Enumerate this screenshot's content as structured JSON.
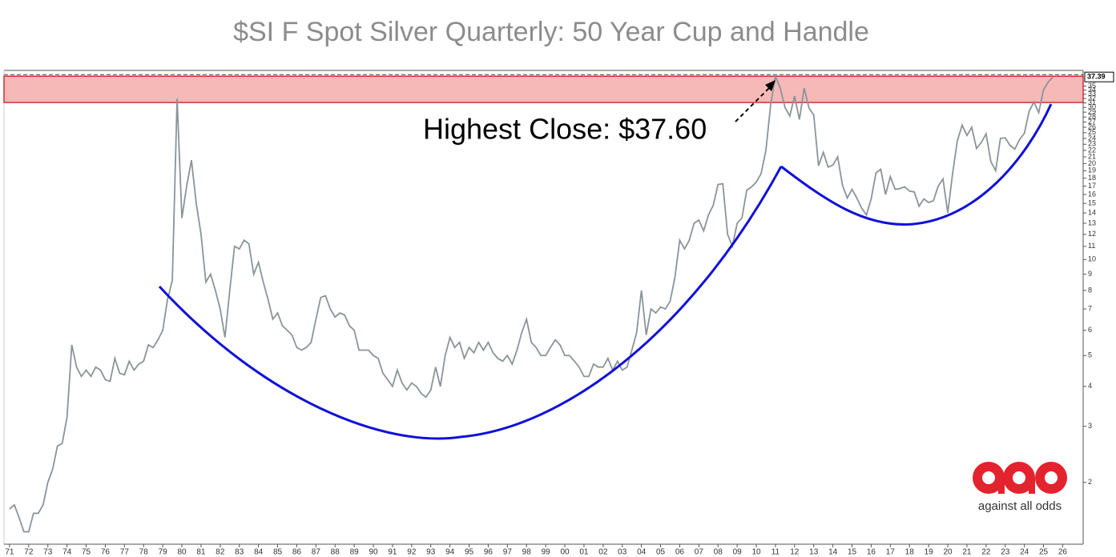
{
  "chart_data": {
    "type": "line",
    "title": "$SI F Spot Silver Quarterly: 50 Year Cup and Handle",
    "annotation": "Highest Close: $37.60",
    "logo_text": "against all odds",
    "color": "#8a9499",
    "log_y": true,
    "band": [
      31.1,
      37.6
    ],
    "x": [
      1971,
      1971.25,
      1971.5,
      1971.75,
      1972,
      1972.25,
      1972.5,
      1972.75,
      1973,
      1973.25,
      1973.5,
      1973.75,
      1974,
      1974.25,
      1974.5,
      1974.75,
      1975,
      1975.25,
      1975.5,
      1975.75,
      1976,
      1976.25,
      1976.5,
      1976.75,
      1977,
      1977.25,
      1977.5,
      1977.75,
      1978,
      1978.25,
      1978.5,
      1978.75,
      1979,
      1979.25,
      1979.5,
      1979.75,
      1980,
      1980.25,
      1980.5,
      1980.75,
      1981,
      1981.25,
      1981.5,
      1981.75,
      1982,
      1982.25,
      1982.5,
      1982.75,
      1983,
      1983.25,
      1983.5,
      1983.75,
      1984,
      1984.25,
      1984.5,
      1984.75,
      1985,
      1985.25,
      1985.5,
      1985.75,
      1986,
      1986.25,
      1986.5,
      1986.75,
      1987,
      1987.25,
      1987.5,
      1987.75,
      1988,
      1988.25,
      1988.5,
      1988.75,
      1989,
      1989.25,
      1989.5,
      1989.75,
      1990,
      1990.25,
      1990.5,
      1990.75,
      1991,
      1991.25,
      1991.5,
      1991.75,
      1992,
      1992.25,
      1992.5,
      1992.75,
      1993,
      1993.25,
      1993.5,
      1993.75,
      1994,
      1994.25,
      1994.5,
      1994.75,
      1995,
      1995.25,
      1995.5,
      1995.75,
      1996,
      1996.25,
      1996.5,
      1996.75,
      1997,
      1997.25,
      1997.5,
      1997.75,
      1998,
      1998.25,
      1998.5,
      1998.75,
      1999,
      1999.25,
      1999.5,
      1999.75,
      2000,
      2000.25,
      2000.5,
      2000.75,
      2001,
      2001.25,
      2001.5,
      2001.75,
      2002,
      2002.25,
      2002.5,
      2002.75,
      2003,
      2003.25,
      2003.5,
      2003.75,
      2004,
      2004.25,
      2004.5,
      2004.75,
      2005,
      2005.25,
      2005.5,
      2005.75,
      2006,
      2006.25,
      2006.5,
      2006.75,
      2007,
      2007.25,
      2007.5,
      2007.75,
      2008,
      2008.25,
      2008.5,
      2008.75,
      2009,
      2009.25,
      2009.5,
      2009.75,
      2010,
      2010.25,
      2010.5,
      2010.75,
      2011,
      2011.25,
      2011.5,
      2011.75,
      2012,
      2012.25,
      2012.5,
      2012.75,
      2013,
      2013.25,
      2013.5,
      2013.75,
      2014,
      2014.25,
      2014.5,
      2014.75,
      2015,
      2015.25,
      2015.5,
      2015.75,
      2016,
      2016.25,
      2016.5,
      2016.75,
      2017,
      2017.25,
      2017.5,
      2017.75,
      2018,
      2018.25,
      2018.5,
      2018.75,
      2019,
      2019.25,
      2019.5,
      2019.75,
      2020,
      2020.25,
      2020.5,
      2020.75,
      2021,
      2021.25,
      2021.5,
      2021.75,
      2022,
      2022.25,
      2022.5,
      2022.75,
      2023,
      2023.25,
      2023.5,
      2023.75,
      2024,
      2024.25,
      2024.5,
      2024.75,
      2025,
      2025.25,
      2025.5
    ],
    "values": [
      1.65,
      1.7,
      1.55,
      1.4,
      1.4,
      1.6,
      1.6,
      1.7,
      2.0,
      2.2,
      2.6,
      2.65,
      3.2,
      5.4,
      4.6,
      4.3,
      4.5,
      4.3,
      4.6,
      4.5,
      4.2,
      4.15,
      4.9,
      4.4,
      4.35,
      4.8,
      4.5,
      4.7,
      4.8,
      5.4,
      5.3,
      5.6,
      6.0,
      7.5,
      8.6,
      32.0,
      13.5,
      17.0,
      20.5,
      15.0,
      12.0,
      8.5,
      9.0,
      8.0,
      7.0,
      5.7,
      8.0,
      11.0,
      10.8,
      11.5,
      11.2,
      9.0,
      9.8,
      8.5,
      7.5,
      6.5,
      6.8,
      6.2,
      6.0,
      5.8,
      5.3,
      5.2,
      5.3,
      5.5,
      6.5,
      7.6,
      7.7,
      7.0,
      6.6,
      6.8,
      6.7,
      6.2,
      6.0,
      5.2,
      5.2,
      5.2,
      5.0,
      4.9,
      4.4,
      4.2,
      4.0,
      4.5,
      4.1,
      3.9,
      4.1,
      4.0,
      3.8,
      3.7,
      3.9,
      4.6,
      4.0,
      5.0,
      5.7,
      5.3,
      5.5,
      4.9,
      5.3,
      5.1,
      5.5,
      5.2,
      5.5,
      5.1,
      4.9,
      4.8,
      5.0,
      4.7,
      5.2,
      5.9,
      6.5,
      5.5,
      5.3,
      5.0,
      5.0,
      5.3,
      5.6,
      5.4,
      5.0,
      5.0,
      4.8,
      4.6,
      4.3,
      4.3,
      4.7,
      4.6,
      4.6,
      4.9,
      4.5,
      4.8,
      4.5,
      4.6,
      5.2,
      5.9,
      8.0,
      5.8,
      7.0,
      6.8,
      7.1,
      7.0,
      7.4,
      8.8,
      11.5,
      10.8,
      11.5,
      13.0,
      13.3,
      12.3,
      13.8,
      14.8,
      17.2,
      17.3,
      12.0,
      11.0,
      13.0,
      13.5,
      16.5,
      16.9,
      17.5,
      18.6,
      22.0,
      30.6,
      37.6,
      34.5,
      30.0,
      28.2,
      32.6,
      27.5,
      34.5,
      29.9,
      28.4,
      19.7,
      21.7,
      19.5,
      19.8,
      21.0,
      17.1,
      15.6,
      16.6,
      15.6,
      14.5,
      13.8,
      15.5,
      18.7,
      19.2,
      16.0,
      18.2,
      16.6,
      16.7,
      16.9,
      16.4,
      16.3,
      14.7,
      15.5,
      15.1,
      15.3,
      17.0,
      17.9,
      14.0,
      18.6,
      23.6,
      26.4,
      24.5,
      26.0,
      22.3,
      23.3,
      24.8,
      20.3,
      19.0,
      24.0,
      24.1,
      22.8,
      22.2,
      23.8,
      24.9,
      29.2,
      31.2,
      28.9,
      34.1,
      36.1,
      37.39
    ],
    "xlim": [
      1970.71,
      2027.07
    ],
    "ylim": [
      1.28,
      39.2
    ],
    "yticks": [
      2,
      3,
      4,
      5,
      6,
      7,
      8,
      9,
      10,
      11,
      12,
      13,
      14,
      15,
      16,
      17,
      18,
      19,
      20,
      21,
      22,
      23,
      24,
      25,
      26,
      27,
      28,
      29,
      30,
      31,
      32,
      33,
      34,
      35
    ],
    "xticks": [
      {
        "value": 1971,
        "label": "71"
      },
      {
        "value": 1972,
        "label": "72"
      },
      {
        "value": 1973,
        "label": "73"
      },
      {
        "value": 1974,
        "label": "74"
      },
      {
        "value": 1975,
        "label": "75"
      },
      {
        "value": 1976,
        "label": "76"
      },
      {
        "value": 1977,
        "label": "77"
      },
      {
        "value": 1978,
        "label": "78"
      },
      {
        "value": 1979,
        "label": "79"
      },
      {
        "value": 1980,
        "label": "80"
      },
      {
        "value": 1981,
        "label": "81"
      },
      {
        "value": 1982,
        "label": "82"
      },
      {
        "value": 1983,
        "label": "83"
      },
      {
        "value": 1984,
        "label": "84"
      },
      {
        "value": 1985,
        "label": "85"
      },
      {
        "value": 1986,
        "label": "86"
      },
      {
        "value": 1987,
        "label": "87"
      },
      {
        "value": 1988,
        "label": "88"
      },
      {
        "value": 1989,
        "label": "89"
      },
      {
        "value": 1990,
        "label": "90"
      },
      {
        "value": 1991,
        "label": "91"
      },
      {
        "value": 1992,
        "label": "92"
      },
      {
        "value": 1993,
        "label": "93"
      },
      {
        "value": 1994,
        "label": "94"
      },
      {
        "value": 1995,
        "label": "95"
      },
      {
        "value": 1996,
        "label": "96"
      },
      {
        "value": 1997,
        "label": "97"
      },
      {
        "value": 1998,
        "label": "98"
      },
      {
        "value": 1999,
        "label": "99"
      },
      {
        "value": 2000,
        "label": "00"
      },
      {
        "value": 2001,
        "label": "01"
      },
      {
        "value": 2002,
        "label": "02"
      },
      {
        "value": 2003,
        "label": "03"
      },
      {
        "value": 2004,
        "label": "04"
      },
      {
        "value": 2005,
        "label": "05"
      },
      {
        "value": 2006,
        "label": "06"
      },
      {
        "value": 2007,
        "label": "07"
      },
      {
        "value": 2008,
        "label": "08"
      },
      {
        "value": 2009,
        "label": "09"
      },
      {
        "value": 2010,
        "label": "10"
      },
      {
        "value": 2011,
        "label": "11"
      },
      {
        "value": 2012,
        "label": "12"
      },
      {
        "value": 2013,
        "label": "13"
      },
      {
        "value": 2014,
        "label": "14"
      },
      {
        "value": 2015,
        "label": "15"
      },
      {
        "value": 2016,
        "label": "16"
      },
      {
        "value": 2017,
        "label": "17"
      },
      {
        "value": 2018,
        "label": "18"
      },
      {
        "value": 2019,
        "label": "19"
      },
      {
        "value": 2020,
        "label": "20"
      },
      {
        "value": 2021,
        "label": "21"
      },
      {
        "value": 2022,
        "label": "22"
      },
      {
        "value": 2023,
        "label": "23"
      },
      {
        "value": 2024,
        "label": "24"
      },
      {
        "value": 2025,
        "label": "25"
      },
      {
        "value": 2026,
        "label": "26"
      }
    ]
  }
}
